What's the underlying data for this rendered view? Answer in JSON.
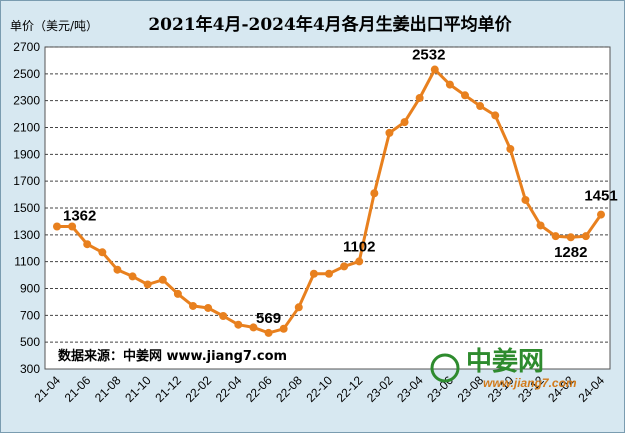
{
  "chart_data": {
    "type": "line",
    "title": "2021年4月-2024年4月各月生姜出口平均单价",
    "ylabel": "单价（美元/吨）",
    "xlabel": "",
    "ylim": [
      300,
      2700
    ],
    "yticks": [
      300,
      500,
      700,
      900,
      1100,
      1300,
      1500,
      1700,
      1900,
      2100,
      2300,
      2500,
      2700
    ],
    "x": [
      "21-04",
      "21-05",
      "21-06",
      "21-07",
      "21-08",
      "21-09",
      "21-10",
      "21-11",
      "21-12",
      "22-01",
      "22-02",
      "22-03",
      "22-04",
      "22-05",
      "22-06",
      "22-07",
      "22-08",
      "22-09",
      "22-10",
      "22-11",
      "22-12",
      "23-01",
      "23-02",
      "23-03",
      "23-04",
      "23-05",
      "23-06",
      "23-07",
      "23-08",
      "23-09",
      "23-10",
      "23-11",
      "23-12",
      "24-01",
      "24-02",
      "24-03",
      "24-04"
    ],
    "xtick_labels": [
      "21-04",
      "21-06",
      "21-08",
      "21-10",
      "21-12",
      "22-02",
      "22-04",
      "22-06",
      "22-08",
      "22-10",
      "22-12",
      "23-02",
      "23-04",
      "23-06",
      "23-08",
      "23-10",
      "23-12",
      "24-02",
      "24-04"
    ],
    "series": [
      {
        "values": [
          1362,
          1362,
          1230,
          1170,
          1040,
          990,
          930,
          965,
          860,
          770,
          755,
          695,
          630,
          610,
          569,
          600,
          760,
          1010,
          1010,
          1065,
          1102,
          1610,
          2060,
          2140,
          2320,
          2532,
          2420,
          2340,
          2260,
          2190,
          1940,
          1560,
          1370,
          1290,
          1282,
          1290,
          1451
        ],
        "color": "#e8801e"
      }
    ],
    "data_labels": [
      {
        "index": 0,
        "text": "1362"
      },
      {
        "index": 14,
        "text": "569"
      },
      {
        "index": 20,
        "text": "1102"
      },
      {
        "index": 25,
        "text": "2532"
      },
      {
        "index": 34,
        "text": "1282"
      },
      {
        "index": 36,
        "text": "1451"
      }
    ],
    "grid": "horizontal dashed",
    "legend": "none"
  },
  "source_text": "数据来源：中姜网 www.jiang7.com",
  "watermark": {
    "name": "中姜网",
    "url": "www.jiang7.com",
    "colors": {
      "text": "#2e8b2e",
      "url": "#d27a1a"
    }
  }
}
